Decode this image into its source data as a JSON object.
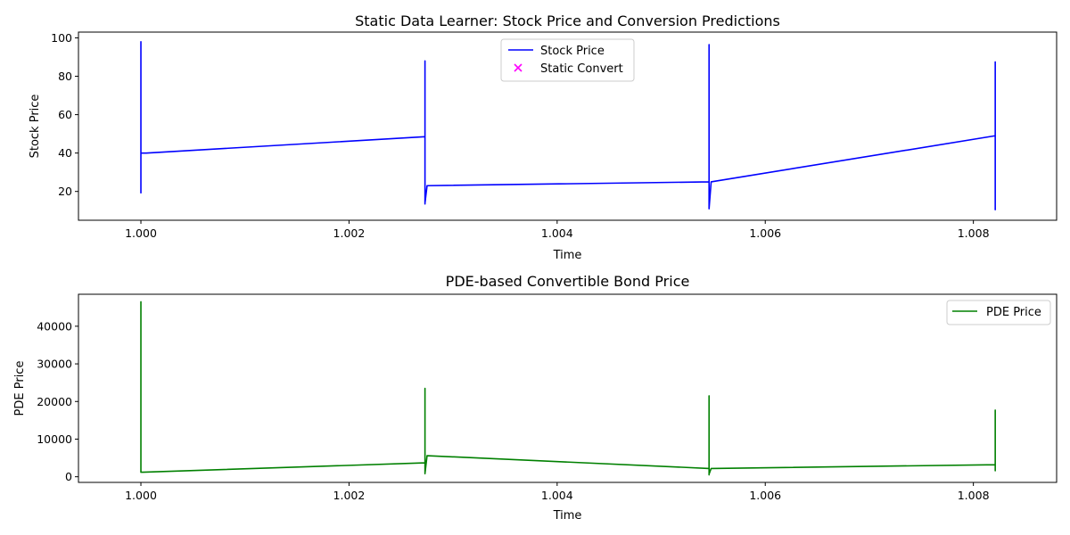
{
  "chart_data": [
    {
      "type": "line",
      "title": "Static Data Learner: Stock Price and Conversion Predictions",
      "xlabel": "Time",
      "ylabel": "Stock Price",
      "xlim": [
        0.9994,
        1.0088
      ],
      "ylim": [
        5,
        103
      ],
      "xticks": [
        1.0,
        1.002,
        1.004,
        1.006,
        1.008
      ],
      "xtick_labels": [
        "1.000",
        "1.002",
        "1.004",
        "1.006",
        "1.008"
      ],
      "yticks": [
        20,
        40,
        60,
        80,
        100
      ],
      "ytick_labels": [
        "20",
        "40",
        "60",
        "80",
        "100"
      ],
      "legend": {
        "position": "top-center",
        "entries": [
          "Stock Price",
          "Static Convert"
        ]
      },
      "series": [
        {
          "name": "Stock Price",
          "kind": "line",
          "color": "#0000ff",
          "points": [
            [
              1.0,
              19
            ],
            [
              1.0,
              98
            ],
            [
              1.0,
              40
            ],
            [
              1.00005,
              40
            ],
            [
              1.00273,
              48.5
            ],
            [
              1.00273,
              13.5
            ],
            [
              1.00273,
              88
            ],
            [
              1.00273,
              14
            ],
            [
              1.00275,
              23
            ],
            [
              1.00546,
              25
            ],
            [
              1.00546,
              11
            ],
            [
              1.00546,
              96.5
            ],
            [
              1.00546,
              11
            ],
            [
              1.00548,
              25
            ],
            [
              1.00821,
              49
            ],
            [
              1.00821,
              10.5
            ],
            [
              1.00821,
              87.5
            ],
            [
              1.00821,
              49
            ]
          ]
        },
        {
          "name": "Static Convert",
          "kind": "scatter",
          "marker": "x",
          "color": "#ff00ff",
          "points": []
        }
      ]
    },
    {
      "type": "line",
      "title": "PDE-based Convertible Bond Price",
      "xlabel": "Time",
      "ylabel": "PDE Price",
      "xlim": [
        0.9994,
        1.0088
      ],
      "ylim": [
        -1500,
        48500
      ],
      "xticks": [
        1.0,
        1.002,
        1.004,
        1.006,
        1.008
      ],
      "xtick_labels": [
        "1.000",
        "1.002",
        "1.004",
        "1.006",
        "1.008"
      ],
      "yticks": [
        0,
        10000,
        20000,
        30000,
        40000
      ],
      "ytick_labels": [
        "0",
        "10000",
        "20000",
        "30000",
        "40000"
      ],
      "legend": {
        "position": "top-right",
        "entries": [
          "PDE Price"
        ]
      },
      "series": [
        {
          "name": "PDE Price",
          "kind": "line",
          "color": "#008000",
          "points": [
            [
              1.0,
              1200
            ],
            [
              1.0,
              46500
            ],
            [
              1.0,
              1200
            ],
            [
              1.00002,
              1200
            ],
            [
              1.00273,
              3700
            ],
            [
              1.00273,
              800
            ],
            [
              1.00273,
              23500
            ],
            [
              1.00273,
              900
            ],
            [
              1.00275,
              5600
            ],
            [
              1.00546,
              2200
            ],
            [
              1.00546,
              500
            ],
            [
              1.00546,
              21500
            ],
            [
              1.00546,
              700
            ],
            [
              1.00548,
              2200
            ],
            [
              1.00821,
              3200
            ],
            [
              1.00821,
              1600
            ],
            [
              1.00821,
              17700
            ],
            [
              1.00821,
              1600
            ]
          ]
        }
      ]
    }
  ]
}
